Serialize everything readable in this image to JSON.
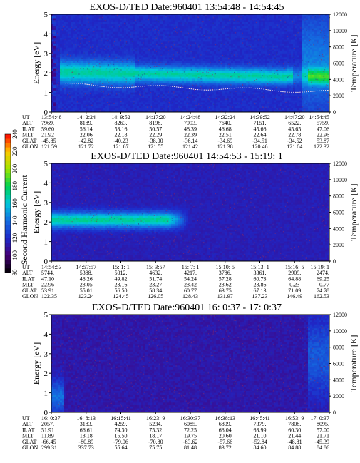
{
  "chart_data": [
    {
      "type": "heatmap",
      "title": "EXOS-D/TED   Date:960401  13:54:48 - 14:54:45",
      "ylabel": "Energy [eV]",
      "y2label": "Temperature [K]",
      "ylim": [
        0,
        5
      ],
      "y2lim": [
        0,
        12000
      ],
      "yticks": [
        "0",
        "1",
        "2",
        "3",
        "4",
        "5"
      ],
      "y2ticks": [
        "0",
        "2000",
        "4000",
        "6000",
        "8000",
        "10000",
        "12000"
      ],
      "ephemeris": {
        "labels": [
          "UT",
          "ALT",
          "ILAT",
          "MLT",
          "GLAT",
          "GLON"
        ],
        "columns": [
          [
            "13:54:48",
            "7969.",
            "59.60",
            "21.92",
            "-45.85",
            "121.59"
          ],
          [
            "14: 2:24",
            "8189.",
            "56.14",
            "22.06",
            "-42.82",
            "121.72"
          ],
          [
            "14: 9:52",
            "8263.",
            "53.16",
            "22.18",
            "-40.23",
            "121.67"
          ],
          [
            "14:17:20",
            "8198.",
            "50.57",
            "22.29",
            "-38.00",
            "121.55"
          ],
          [
            "14:24:48",
            "7993.",
            "48.39",
            "22.39",
            "-36.14",
            "121.42"
          ],
          [
            "14:32:24",
            "7640.",
            "46.68",
            "22.51",
            "-34.69",
            "121.38"
          ],
          [
            "14:39:52",
            "7151.",
            "45.66",
            "22.64",
            "-34.51",
            "120.46"
          ],
          [
            "14:47:20",
            "6522.",
            "45.65",
            "22.78",
            "-34.52",
            "121.04"
          ],
          [
            "14:54:45",
            "5759.",
            "47.06",
            "22.96",
            "53.87",
            "122.32"
          ]
        ]
      }
    },
    {
      "type": "heatmap",
      "title": "EXOS-D/TED   Date:960401  14:54:53 - 15:19: 1",
      "ylabel": "Energy [eV]",
      "y2label": "Temperature [K]",
      "ylim": [
        0,
        5
      ],
      "y2lim": [
        0,
        12000
      ],
      "yticks": [
        "0",
        "1",
        "2",
        "3",
        "4",
        "5"
      ],
      "y2ticks": [
        "0",
        "2000",
        "4000",
        "6000",
        "8000",
        "10000",
        "12000"
      ],
      "colorbar": {
        "label": "Second Harmonic Current",
        "ticks": [
          "80",
          "100",
          "120",
          "140",
          "160",
          "180",
          "200",
          "220",
          "240"
        ],
        "range": [
          80,
          240
        ]
      },
      "ephemeris": {
        "labels": [
          "UT",
          "ALT",
          "ILAT",
          "MLT",
          "GLAT",
          "GLON"
        ],
        "columns": [
          [
            "14:54:53",
            "5744.",
            "47.10",
            "22.96",
            "53.91",
            "122.35"
          ],
          [
            "14:57:57",
            "5388.",
            "48.26",
            "23.05",
            "55.01",
            "123.24"
          ],
          [
            "15: 1: 1",
            "5012.",
            "49.82",
            "23.16",
            "56.50",
            "124.45"
          ],
          [
            "15: 3:57",
            "4632.",
            "51.74",
            "23.27",
            "58.34",
            "126.05"
          ],
          [
            "15: 7: 1",
            "4217.",
            "54.24",
            "23.42",
            "60.77",
            "128.43"
          ],
          [
            "15:10: 5",
            "3786.",
            "57.28",
            "23.62",
            "63.75",
            "131.97"
          ],
          [
            "15:13: 1",
            "3361.",
            "60.73",
            "23.86",
            "67.13",
            "137.23"
          ],
          [
            "15:16: 5",
            "2909.",
            "64.88",
            "0.23",
            "71.09",
            "146.49"
          ],
          [
            "15:19: 1",
            "2474.",
            "69.25",
            "0.77",
            "74.78",
            "162.53"
          ]
        ]
      }
    },
    {
      "type": "heatmap",
      "title": "EXOS-D/TED   Date:960401  16: 0:37 - 17: 0:37",
      "ylabel": "Energy [eV]",
      "y2label": "Temperature [K]",
      "ylim": [
        0,
        5
      ],
      "y2lim": [
        0,
        12000
      ],
      "yticks": [
        "0",
        "1",
        "2",
        "3",
        "4",
        "5"
      ],
      "y2ticks": [
        "0",
        "2000",
        "4000",
        "6000",
        "8000",
        "10000",
        "12000"
      ],
      "ephemeris": {
        "labels": [
          "UT",
          "ALT",
          "ILAT",
          "MLT",
          "GLAT",
          "GLON"
        ],
        "columns": [
          [
            "16: 0:37",
            "2057.",
            "51.91",
            "11.89",
            "-66.45",
            "299.31"
          ],
          [
            "16: 8:13",
            "3183.",
            "66.61",
            "13.18",
            "-80.89",
            "337.73"
          ],
          [
            "16:15:41",
            "4259.",
            "74.30",
            "15.50",
            "-79.06",
            "55.64"
          ],
          [
            "16:23: 9",
            "5234.",
            "75.32",
            "18.17",
            "-70.80",
            "75.75"
          ],
          [
            "16:30:37",
            "6085.",
            "72.25",
            "19.75",
            "-63.62",
            "81.48"
          ],
          [
            "16:38:13",
            "6809.",
            "68.04",
            "20.60",
            "-57.66",
            "83.72"
          ],
          [
            "16:45:41",
            "7379.",
            "63.99",
            "21.10",
            "-52.84",
            "84.60"
          ],
          [
            "16:53: 9",
            "7808.",
            "60.30",
            "21.44",
            "-48.81",
            "84.88"
          ],
          [
            "17: 0:37",
            "8095.",
            "57.00",
            "21.71",
            "-45.39",
            "84.86"
          ]
        ]
      }
    }
  ]
}
